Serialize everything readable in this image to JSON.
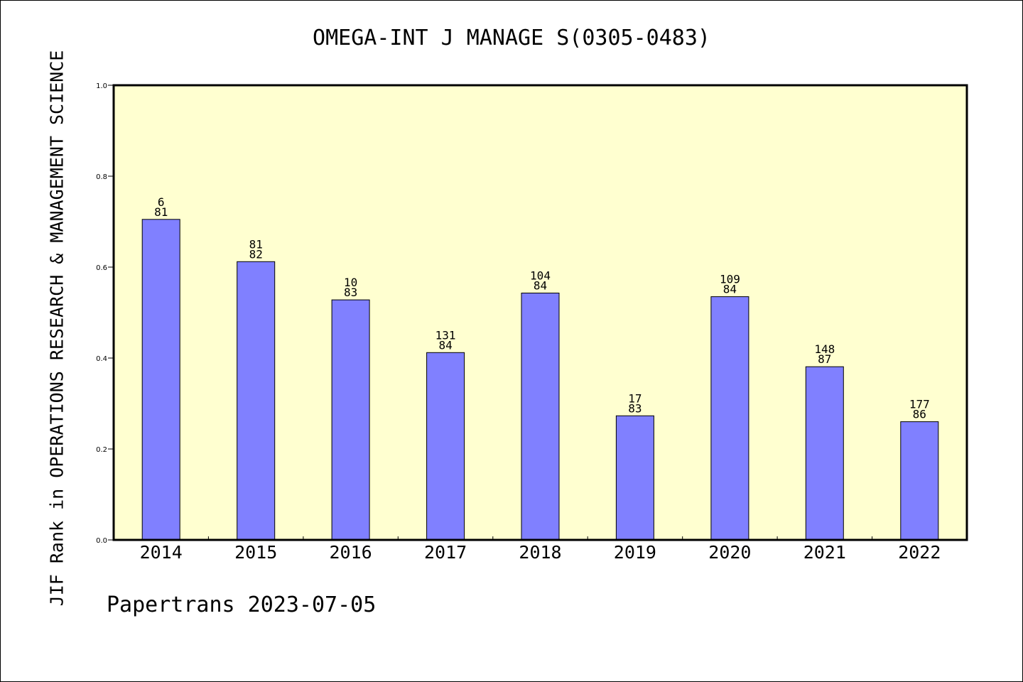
{
  "chart_data": {
    "type": "bar",
    "title": "OMEGA-INT J MANAGE S(0305-0483)",
    "ylabel": "JIF Rank in OPERATIONS RESEARCH & MANAGEMENT SCIENCE",
    "xlabel": "",
    "categories": [
      "2014",
      "2015",
      "2016",
      "2017",
      "2018",
      "2019",
      "2020",
      "2021",
      "2022"
    ],
    "values": [
      0.705,
      0.612,
      0.528,
      0.412,
      0.543,
      0.273,
      0.535,
      0.381,
      0.26
    ],
    "labels_top": [
      "6",
      "81",
      "10",
      "131",
      "104",
      "17",
      "109",
      "148",
      "177"
    ],
    "labels_bottom": [
      "81",
      "82",
      "83",
      "84",
      "84",
      "83",
      "84",
      "87",
      "86"
    ],
    "ylim": [
      0,
      1.0
    ],
    "yticks": [
      "0.0",
      "0.2",
      "0.4",
      "0.6",
      "0.8",
      "1.0"
    ],
    "grid": false,
    "colors": {
      "plot_background": "#ffffd0",
      "bar_fill": "#8080ff",
      "bar_stroke": "#000000",
      "axis": "#000000"
    }
  },
  "footer": "Papertrans 2023-07-05"
}
